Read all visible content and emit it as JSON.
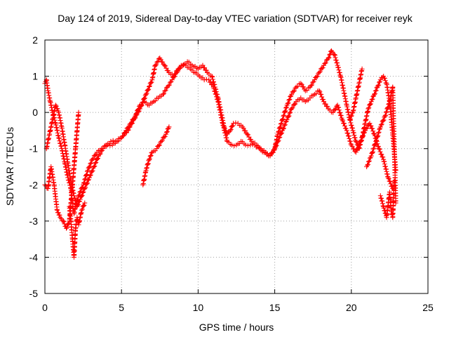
{
  "chart_data": {
    "type": "scatter",
    "title": "Day 124 of 2019, Sidereal Day-to-day VTEC variation (SDTVAR) for receiver reyk",
    "xlabel": "GPS time / hours",
    "ylabel": "SDTVAR / TECUs",
    "xlim": [
      0,
      25
    ],
    "ylim": [
      -5,
      2
    ],
    "xticks": [
      0,
      5,
      10,
      15,
      20,
      25
    ],
    "yticks": [
      -5,
      -4,
      -3,
      -2,
      -1,
      0,
      1,
      2
    ],
    "grid": true,
    "marker": "+",
    "color": "#ff0000",
    "series": [
      {
        "name": "track-a",
        "x": [
          0.0,
          0.1,
          0.2,
          0.35,
          0.5,
          0.7,
          0.9,
          1.1,
          1.3,
          1.5,
          1.7,
          1.8,
          1.9,
          2.0,
          2.2,
          2.5,
          2.8,
          3.1,
          3.4,
          3.7,
          4.0,
          4.3,
          4.6,
          5.0,
          5.4,
          5.8,
          6.2,
          6.6,
          7.0,
          7.2,
          7.5,
          7.8,
          8.1,
          8.4,
          8.7,
          9.0,
          9.3,
          9.6,
          10.0,
          10.3,
          10.6,
          10.9,
          11.1,
          11.3,
          11.5,
          11.7,
          11.9,
          12.1,
          12.3,
          12.6,
          12.9,
          13.2,
          13.5,
          13.8,
          14.1,
          14.4,
          14.7,
          15.0,
          15.2,
          15.5,
          15.8,
          16.1,
          16.4,
          16.7,
          17.0,
          17.3,
          17.6,
          17.9,
          18.2,
          18.5,
          18.7,
          18.9,
          19.1,
          19.3,
          19.5,
          19.7,
          19.9,
          20.1,
          20.3,
          20.5,
          20.7,
          20.9,
          21.1,
          21.3,
          21.5,
          21.7,
          21.9,
          22.1,
          22.3,
          22.5,
          22.7,
          22.9
        ],
        "y": [
          0.8,
          0.9,
          0.6,
          0.3,
          0.0,
          -0.3,
          -0.7,
          -1.0,
          -1.4,
          -1.8,
          -2.1,
          -2.5,
          -2.8,
          -2.6,
          -2.3,
          -2.0,
          -1.6,
          -1.3,
          -1.1,
          -1.0,
          -0.9,
          -0.8,
          -0.8,
          -0.7,
          -0.5,
          -0.2,
          0.1,
          0.5,
          0.9,
          1.3,
          1.5,
          1.3,
          1.1,
          1.0,
          1.2,
          1.3,
          1.4,
          1.3,
          1.2,
          1.3,
          1.1,
          1.0,
          0.7,
          0.4,
          0.0,
          -0.4,
          -0.6,
          -0.5,
          -0.3,
          -0.3,
          -0.4,
          -0.6,
          -0.8,
          -0.9,
          -1.0,
          -1.1,
          -1.2,
          -1.0,
          -0.6,
          -0.2,
          0.2,
          0.5,
          0.7,
          0.8,
          0.6,
          0.7,
          0.9,
          1.1,
          1.3,
          1.5,
          1.7,
          1.6,
          1.3,
          1.0,
          0.6,
          0.2,
          -0.2,
          -0.5,
          -0.8,
          -1.0,
          -0.7,
          -0.3,
          0.1,
          0.3,
          0.5,
          0.7,
          0.9,
          1.0,
          0.8,
          0.3,
          -0.6,
          -1.6
        ]
      },
      {
        "name": "track-b",
        "x": [
          0.1,
          0.3,
          0.5,
          0.7,
          0.9,
          1.1,
          1.3,
          1.5,
          1.7,
          1.9,
          2.1,
          2.3,
          2.6,
          2.9,
          3.2,
          3.5,
          3.8,
          4.1,
          4.4,
          4.7,
          5.0,
          5.3,
          5.6,
          5.9,
          6.2,
          6.5,
          6.8,
          7.1,
          7.4,
          7.7,
          8.0,
          8.3,
          8.6,
          8.9,
          9.2,
          9.5,
          9.8,
          10.1,
          10.4,
          10.7,
          11.0,
          11.3,
          11.6,
          11.9,
          12.2,
          12.5,
          12.8,
          13.1,
          13.4,
          13.7,
          14.0,
          14.3,
          14.6,
          14.9,
          15.2,
          15.5,
          15.8,
          16.1,
          16.4,
          16.7,
          17.0,
          17.3,
          17.6,
          17.9,
          18.2,
          18.5,
          18.8,
          19.1,
          19.4,
          19.7,
          20.0,
          20.3,
          20.6,
          20.9,
          21.2,
          21.5,
          21.8,
          22.1,
          22.4,
          22.7
        ],
        "y": [
          -1.0,
          -0.6,
          -0.2,
          0.2,
          0.0,
          -0.4,
          -0.9,
          -1.4,
          -1.9,
          -2.3,
          -2.6,
          -2.4,
          -2.1,
          -1.8,
          -1.5,
          -1.2,
          -1.0,
          -0.9,
          -0.9,
          -0.8,
          -0.7,
          -0.5,
          -0.3,
          -0.1,
          0.2,
          0.3,
          0.2,
          0.3,
          0.4,
          0.5,
          0.7,
          0.9,
          1.1,
          1.3,
          1.3,
          1.2,
          1.1,
          1.0,
          0.9,
          0.9,
          0.7,
          0.3,
          -0.3,
          -0.8,
          -0.9,
          -0.9,
          -0.8,
          -0.9,
          -0.9,
          -0.9,
          -1.0,
          -1.1,
          -1.2,
          -1.1,
          -0.8,
          -0.5,
          -0.2,
          0.1,
          0.3,
          0.4,
          0.3,
          0.4,
          0.5,
          0.6,
          0.3,
          0.1,
          0.0,
          0.2,
          -0.2,
          -0.5,
          -0.9,
          -1.1,
          -0.8,
          -0.5,
          -0.3,
          -0.6,
          -1.0,
          -1.3,
          -1.8,
          -2.1
        ]
      },
      {
        "name": "track-c",
        "x": [
          0.0,
          0.2,
          0.4,
          0.6,
          0.8,
          1.0,
          1.2,
          1.4,
          1.6,
          1.8,
          2.0,
          2.2,
          6.4,
          6.6,
          6.8,
          7.0,
          7.3,
          7.6,
          7.9,
          8.1,
          21.0,
          21.3,
          21.6,
          21.9,
          22.2,
          22.5,
          22.7,
          22.9
        ],
        "y": [
          -2.0,
          -2.1,
          -1.5,
          -2.0,
          -2.7,
          -2.9,
          -3.0,
          -3.2,
          -3.0,
          -2.0,
          -1.0,
          0.0,
          -2.0,
          -1.6,
          -1.3,
          -1.1,
          -1.0,
          -0.8,
          -0.6,
          -0.4,
          -1.5,
          -1.2,
          -0.8,
          -0.4,
          -0.1,
          0.3,
          0.7,
          -2.5
        ]
      },
      {
        "name": "track-d",
        "x": [
          1.6,
          1.7,
          1.8,
          1.9,
          2.0,
          2.1,
          2.2,
          2.4,
          2.6,
          19.9,
          20.1,
          20.3,
          20.5,
          20.7,
          21.9,
          22.1,
          22.3,
          22.5,
          22.6,
          22.7,
          22.8
        ],
        "y": [
          -2.6,
          -3.0,
          -3.5,
          -4.0,
          -3.2,
          -2.9,
          -3.1,
          -2.7,
          -2.5,
          -0.2,
          0.0,
          0.4,
          0.8,
          1.2,
          -2.3,
          -2.6,
          -2.9,
          -2.2,
          -2.7,
          -2.9,
          -1.9
        ]
      }
    ]
  }
}
